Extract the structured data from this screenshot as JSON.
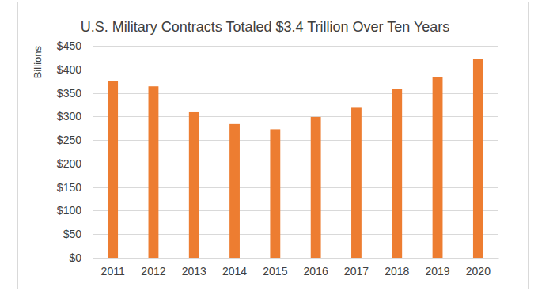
{
  "chart_data": {
    "type": "bar",
    "title": "U.S. Military Contracts Totaled $3.4 Trillion Over Ten Years",
    "y_label": "Billions",
    "categories": [
      "2011",
      "2012",
      "2013",
      "2014",
      "2015",
      "2016",
      "2017",
      "2018",
      "2019",
      "2020"
    ],
    "values": [
      375,
      364,
      309,
      284,
      273,
      299,
      320,
      359,
      384,
      422
    ],
    "color": "#ed7d31",
    "ylim": [
      0,
      450
    ],
    "yticks": [
      {
        "value": 0,
        "label": "$0"
      },
      {
        "value": 50,
        "label": "$50"
      },
      {
        "value": 100,
        "label": "$100"
      },
      {
        "value": 150,
        "label": "$150"
      },
      {
        "value": 200,
        "label": "$200"
      },
      {
        "value": 250,
        "label": "$250"
      },
      {
        "value": 300,
        "label": "$300"
      },
      {
        "value": 350,
        "label": "$350"
      },
      {
        "value": 400,
        "label": "$400"
      },
      {
        "value": 450,
        "label": "$450"
      }
    ],
    "grid": true
  }
}
